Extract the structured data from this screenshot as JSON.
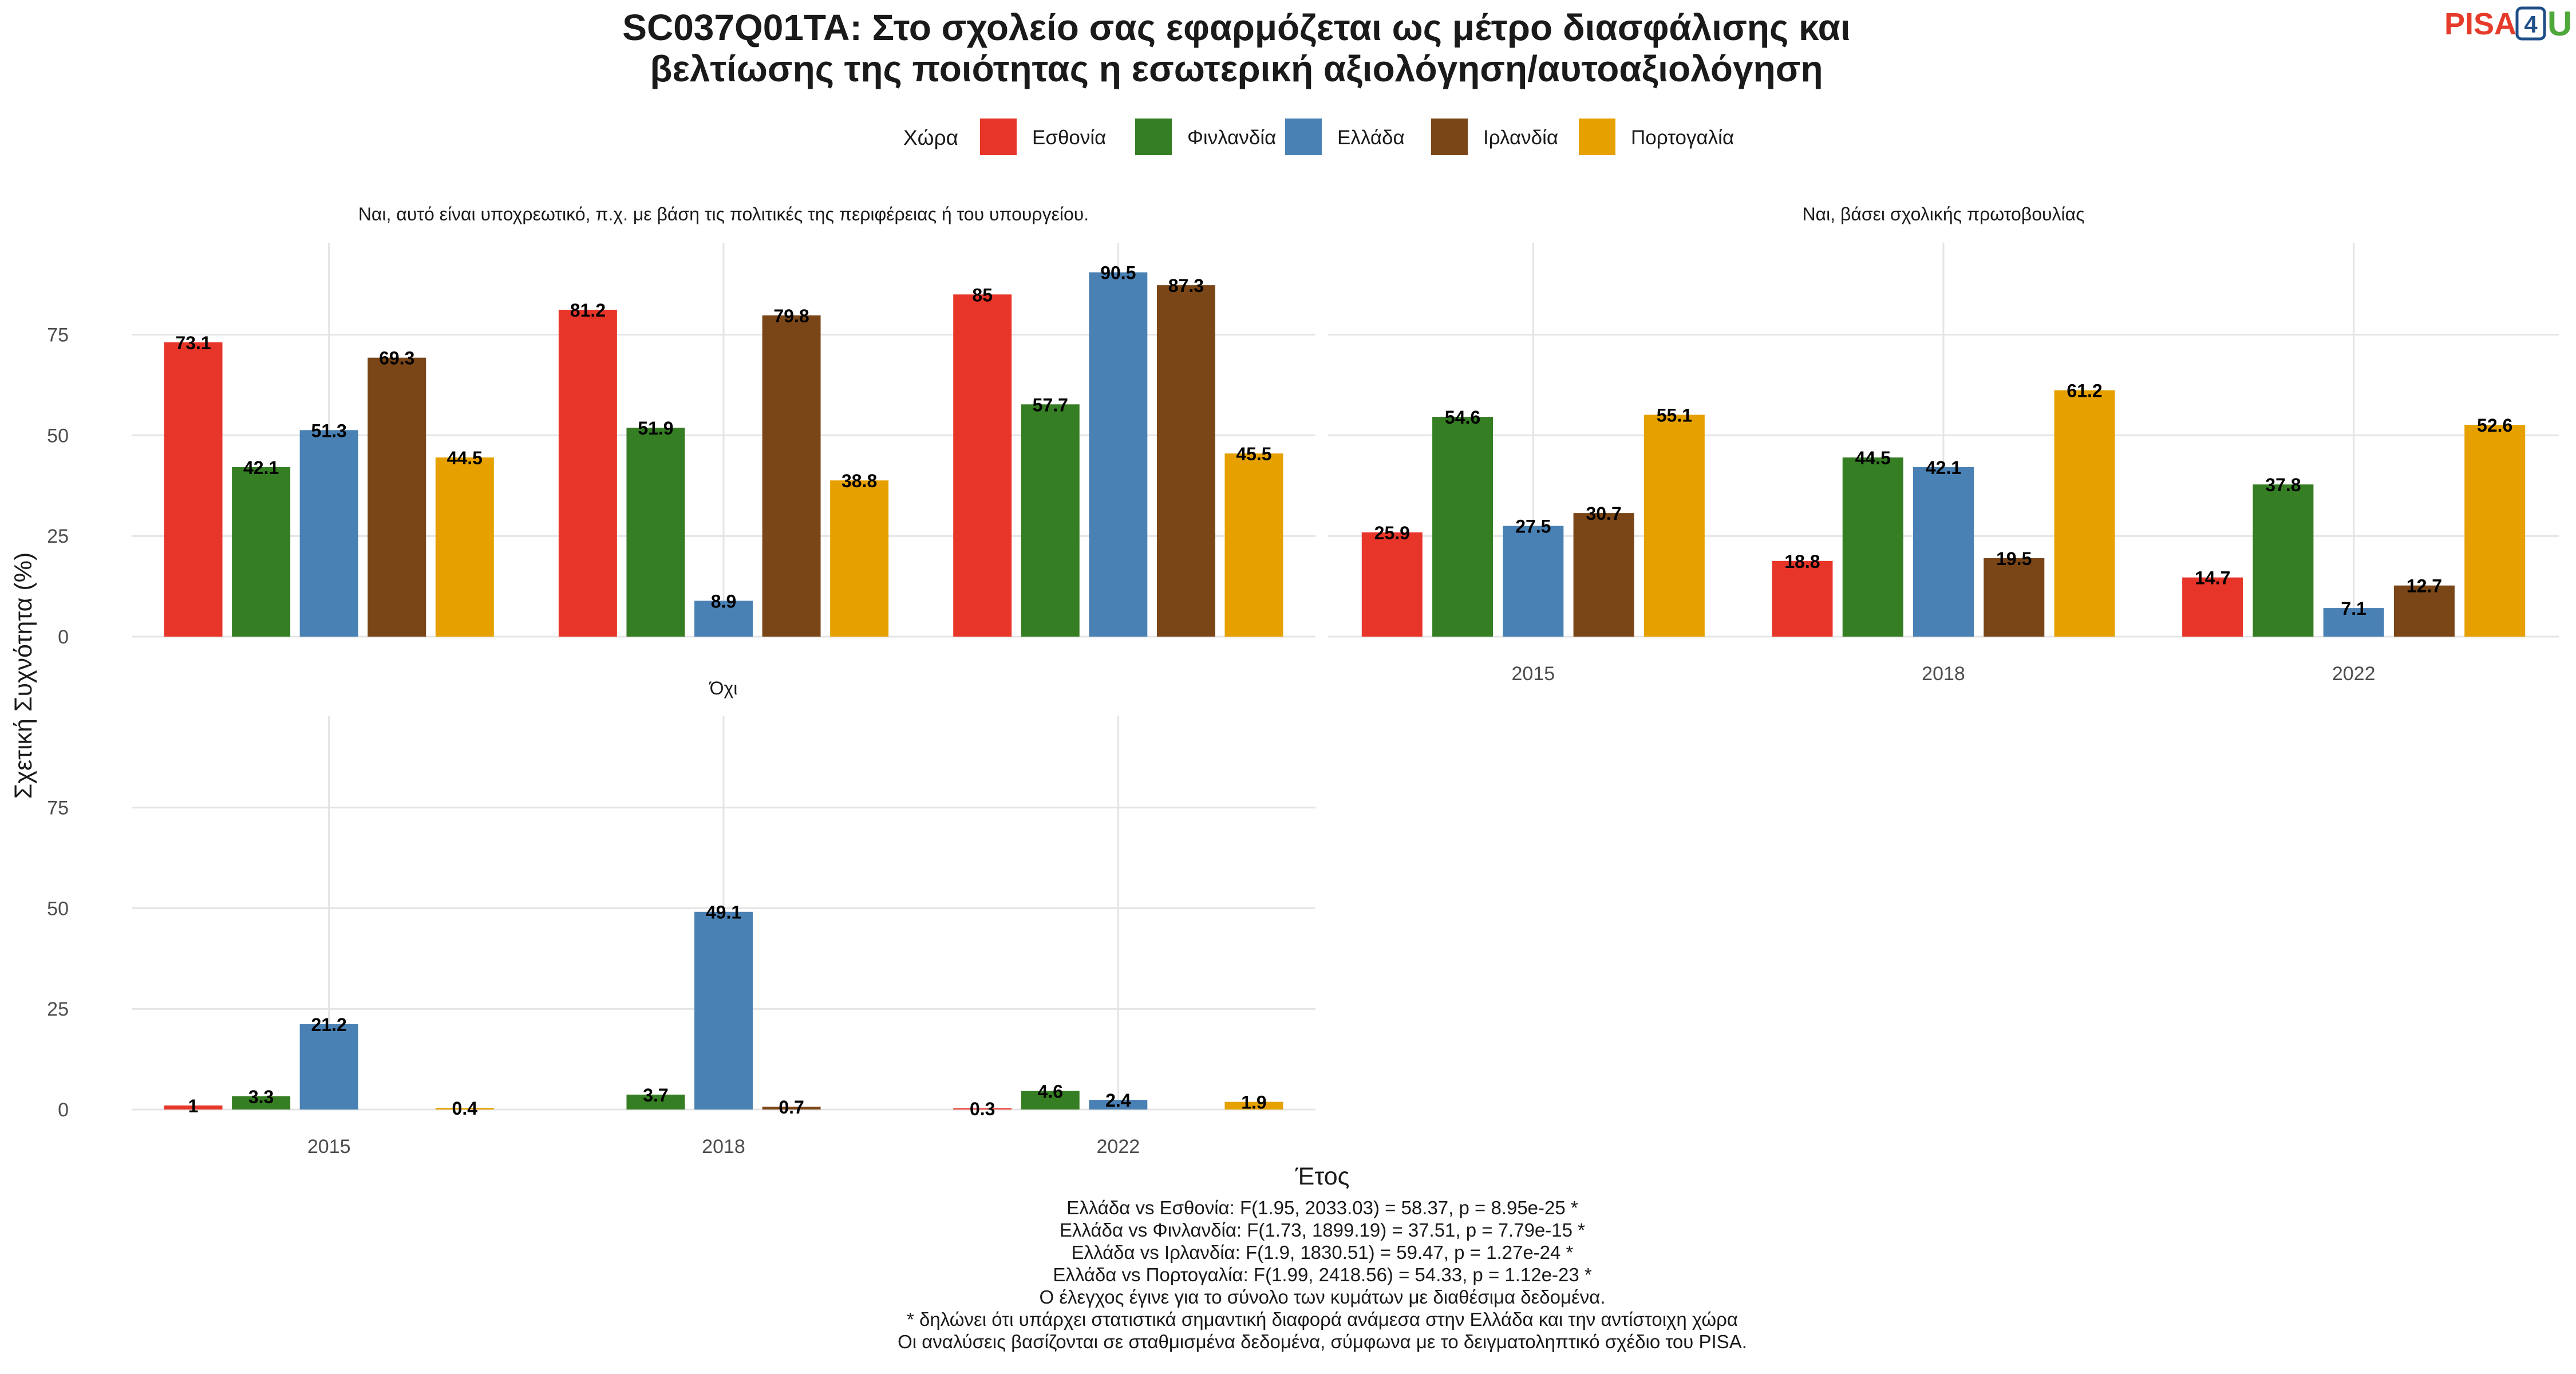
{
  "title_lines": [
    "SC037Q01TA: Στο σχολείο σας εφαρμόζεται ως μέτρο διασφάλισης και",
    "βελτίωσης της ποιότητας η εσωτερική αξιολόγηση/αυτοαξιολόγηση"
  ],
  "logo": {
    "text": "PISA",
    "digit": "4",
    "suffix": "U"
  },
  "legend": {
    "title": "Χώρα"
  },
  "colors": {
    "Εσθονία": "#e8352a",
    "Φινλανδία": "#367e24",
    "Ελλάδα": "#4a81b4",
    "Ιρλανδία": "#7a4618",
    "Πορτογαλία": "#e6a101"
  },
  "axes": {
    "y_title": "Σχετική Συχνότητα (%)",
    "x_title": "Έτος",
    "y_ticks": [
      "0",
      "25",
      "50",
      "75"
    ]
  },
  "chart_data": {
    "type": "bar",
    "categories": [
      "2015",
      "2018",
      "2022"
    ],
    "series_names": [
      "Εσθονία",
      "Φινλανδία",
      "Ελλάδα",
      "Ιρλανδία",
      "Πορτογαλία"
    ],
    "ylim": [
      0,
      95
    ],
    "panels": [
      {
        "title": "Ναι, αυτό είναι υποχρεωτικό, π.χ. με βάση τις πολιτικές της περιφέρειας ή του υπουργείου.",
        "values": [
          [
            73.1,
            42.1,
            51.3,
            69.3,
            44.5
          ],
          [
            81.2,
            51.9,
            8.9,
            79.8,
            38.8
          ],
          [
            85,
            57.7,
            90.5,
            87.3,
            45.5
          ]
        ],
        "labels": [
          [
            "73.1",
            "42.1",
            "51.3",
            "69.3",
            "44.5"
          ],
          [
            "81.2",
            "51.9",
            "8.9",
            "79.8",
            "38.8"
          ],
          [
            "85",
            "57.7",
            "90.5",
            "87.3",
            "45.5"
          ]
        ]
      },
      {
        "title": "Ναι, βάσει σχολικής πρωτοβουλίας",
        "values": [
          [
            25.9,
            54.6,
            27.5,
            30.7,
            55.1
          ],
          [
            18.8,
            44.5,
            42.1,
            19.5,
            61.2
          ],
          [
            14.7,
            37.8,
            7.1,
            12.7,
            52.6
          ]
        ],
        "labels": [
          [
            "25.9",
            "54.6",
            "27.5",
            "30.7",
            "55.1"
          ],
          [
            "18.8",
            "44.5",
            "42.1",
            "19.5",
            "61.2"
          ],
          [
            "14.7",
            "37.8",
            "7.1",
            "12.7",
            "52.6"
          ]
        ]
      },
      {
        "title": "Όχι",
        "values": [
          [
            1,
            3.3,
            21.2,
            null,
            0.4
          ],
          [
            null,
            3.7,
            49.1,
            0.7,
            null
          ],
          [
            0.3,
            4.6,
            2.4,
            null,
            1.9
          ]
        ],
        "labels": [
          [
            "1",
            "3.3",
            "21.2",
            "",
            "0.4"
          ],
          [
            "",
            "3.7",
            "49.1",
            "0.7",
            ""
          ],
          [
            "0.3",
            "4.6",
            "2.4",
            "",
            "1.9"
          ]
        ]
      }
    ]
  },
  "footnotes": [
    "Ελλάδα vs Εσθονία: F(1.95, 2033.03) = 58.37, p = 8.95e-25 *",
    "Ελλάδα vs Φινλανδία: F(1.73, 1899.19) = 37.51, p = 7.79e-15 *",
    "Ελλάδα vs Ιρλανδία: F(1.9, 1830.51) = 59.47, p = 1.27e-24 *",
    "Ελλάδα vs Πορτογαλία: F(1.99, 2418.56) = 54.33, p = 1.12e-23 *",
    "Ο έλεγχος έγινε για το σύνολο των κυμάτων με διαθέσιμα δεδομένα.",
    "* δηλώνει ότι υπάρχει στατιστικά σημαντική διαφορά ανάμεσα στην Ελλάδα και την αντίστοιχη χώρα",
    "Οι αναλύσεις βασίζονται σε σταθμισμένα δεδομένα, σύμφωνα με το δειγματοληπτικό σχέδιο του PISA."
  ]
}
